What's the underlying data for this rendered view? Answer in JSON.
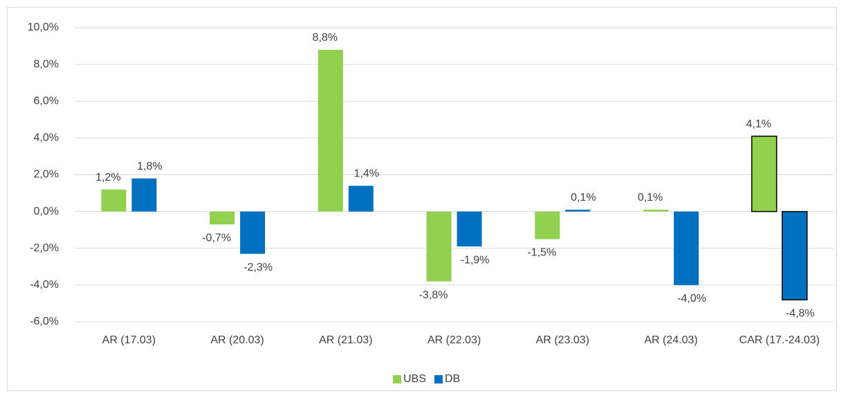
{
  "chart_data": {
    "type": "bar",
    "categories": [
      "AR (17.03)",
      "AR (20.03)",
      "AR (21.03)",
      "AR (22.03)",
      "AR (23.03)",
      "AR (24.03)",
      "CAR (17.-24.03)"
    ],
    "series": [
      {
        "name": "UBS",
        "color": "#92d050",
        "values": [
          1.2,
          -0.7,
          8.8,
          -3.8,
          -1.5,
          0.1,
          4.1
        ],
        "value_labels": [
          "1,2%",
          "-0,7%",
          "8,8%",
          "-3,8%",
          "-1,5%",
          "0,1%",
          "4,1%"
        ]
      },
      {
        "name": "DB",
        "color": "#0070c0",
        "values": [
          1.8,
          -2.3,
          1.4,
          -1.9,
          0.1,
          -4.0,
          -4.8
        ],
        "value_labels": [
          "1,8%",
          "-2,3%",
          "1,4%",
          "-1,9%",
          "0,1%",
          "-4,0%",
          "-4,8%"
        ]
      }
    ],
    "ylim": [
      -6,
      10
    ],
    "yticks": [
      {
        "value": -6,
        "label": "-6,0%"
      },
      {
        "value": -4,
        "label": "-4,0%"
      },
      {
        "value": -2,
        "label": "-2,0%"
      },
      {
        "value": 0,
        "label": "0,0%"
      },
      {
        "value": 2,
        "label": "2,0%"
      },
      {
        "value": 4,
        "label": "4,0%"
      },
      {
        "value": 6,
        "label": "6,0%"
      },
      {
        "value": 8,
        "label": "8,0%"
      },
      {
        "value": 10,
        "label": "10,0%"
      }
    ],
    "grid": true,
    "legend": "bottom"
  }
}
